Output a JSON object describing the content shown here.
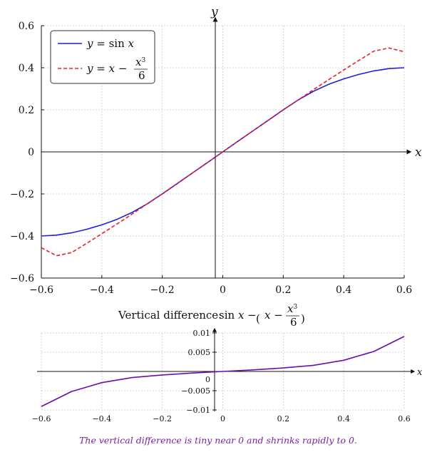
{
  "chart_data": [
    {
      "type": "line",
      "x": [
        -0.6,
        -0.55,
        -0.5,
        -0.45,
        -0.4,
        -0.35,
        -0.3,
        -0.25,
        -0.2,
        -0.15,
        -0.1,
        -0.05,
        0,
        0.05,
        0.1,
        0.15,
        0.2,
        0.25,
        0.3,
        0.35,
        0.4,
        0.45,
        0.5,
        0.55,
        0.6
      ],
      "series": [
        {
          "name": "y = sin x",
          "color": "#1f1fdc",
          "style": "solid",
          "values": [
            -0.4,
            -0.396,
            -0.385,
            -0.368,
            -0.347,
            -0.321,
            -0.288,
            -0.247,
            -0.2,
            -0.15,
            -0.1,
            -0.05,
            0,
            0.05,
            0.1,
            0.15,
            0.2,
            0.247,
            0.288,
            0.321,
            0.347,
            0.368,
            0.385,
            0.396,
            0.4
          ]
        },
        {
          "name": "y = x − x³/6",
          "color": "#e8212a",
          "style": "dashed",
          "values": [
            -0.456,
            -0.494,
            -0.479,
            -0.435,
            -0.389,
            -0.343,
            -0.296,
            -0.247,
            -0.199,
            -0.149,
            -0.1,
            -0.05,
            0,
            0.05,
            0.1,
            0.149,
            0.199,
            0.247,
            0.296,
            0.343,
            0.389,
            0.435,
            0.479,
            0.494,
            0.476
          ]
        }
      ],
      "xlim": [
        -0.6,
        0.6
      ],
      "ylim": [
        -0.6,
        0.6
      ],
      "xticks": [
        "−0.6",
        "−0.4",
        "−0.2",
        "0",
        "0.2",
        "0.4",
        "0.6"
      ],
      "yticks": [
        "0.6",
        "0.4",
        "0.2",
        "0",
        "−0.2",
        "−0.4",
        "−0.6"
      ],
      "xlabel": "x",
      "ylabel": "y",
      "grid": true,
      "legend": "top-left"
    },
    {
      "type": "line",
      "title": "Vertical difference:",
      "x": [
        -0.6,
        -0.5,
        -0.4,
        -0.3,
        -0.2,
        -0.1,
        0,
        0.1,
        0.2,
        0.3,
        0.4,
        0.5,
        0.6
      ],
      "series": [
        {
          "color": "#6a0dad",
          "values": [
            -0.0091,
            -0.0052,
            -0.0029,
            -0.0016,
            -0.0009,
            -0.0004,
            0,
            0.0004,
            0.0009,
            0.0016,
            0.0029,
            0.0052,
            0.0091
          ]
        }
      ],
      "xlim": [
        -0.6,
        0.6
      ],
      "ylim": [
        -0.01,
        0.01
      ],
      "xticks": [
        "−0.6",
        "−0.4",
        "−0.2",
        "0",
        "0.2",
        "0.4",
        "0.6"
      ],
      "yticks": [
        "0.01",
        "0.005",
        "0",
        "−0.005",
        "−0.01"
      ],
      "xlabel": "x",
      "grid": true
    }
  ],
  "caption": "The vertical difference is tiny near 0 and shrinks rapidly to 0."
}
